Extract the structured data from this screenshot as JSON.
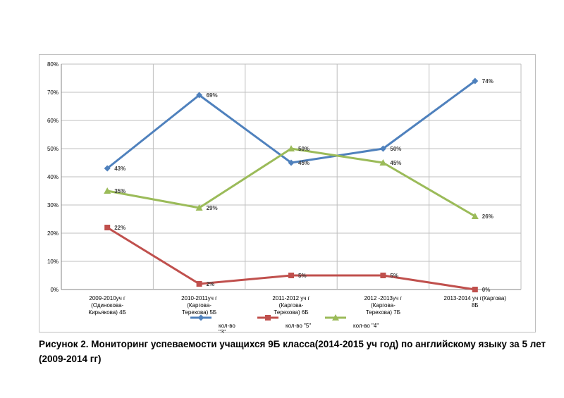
{
  "caption": "Рисунок 2. Мониторинг успеваемости учащихся 9Б класса(2014-2015 уч год) по английскому языку за 5  лет (2009-2014 гг)",
  "chart_data": {
    "type": "line",
    "categories": [
      [
        "2009-2010уч  г",
        "(Одинокова-",
        "Кирьякова) 4Б"
      ],
      [
        "2010-2011уч  г",
        "(Каргова-",
        "Терехова) 5Б"
      ],
      [
        "2011-2012 уч г",
        "(Каргова-",
        "Терехова) 6Б"
      ],
      [
        "2012 -2013уч г",
        "(Каргова-",
        "Терехова) 7Б"
      ],
      [
        "2013-2014 уч г(Каргова)",
        "8Б"
      ]
    ],
    "y_ticks": [
      "0%",
      "10%",
      "20%",
      "30%",
      "40%",
      "50%",
      "60%",
      "70%",
      "80%"
    ],
    "ylim": [
      0,
      80
    ],
    "grid": true,
    "legend_position": "bottom",
    "series": [
      {
        "name": "кол-во \"3\"",
        "legend_lines": [
          "кол-во",
          "\"3\""
        ],
        "color": "#4f81bd",
        "marker": "diamond",
        "values": [
          43,
          69,
          45,
          50,
          74
        ],
        "labels": [
          "43%",
          "69%",
          "45%",
          "50%",
          "74%"
        ]
      },
      {
        "name": "кол-во \"5\"",
        "legend_lines": [
          "кол-во \"5\""
        ],
        "color": "#c0504d",
        "marker": "square",
        "values": [
          22,
          2,
          5,
          5,
          0
        ],
        "labels": [
          "22%",
          "2%",
          "5%",
          "5%",
          "0%"
        ]
      },
      {
        "name": "кол-во \"4\"",
        "legend_lines": [
          "кол-во \"4\""
        ],
        "color": "#9bbb59",
        "marker": "triangle",
        "values": [
          35,
          29,
          50,
          45,
          26
        ],
        "labels": [
          "35%",
          "29%",
          "50%",
          "45%",
          "26%"
        ]
      }
    ]
  }
}
